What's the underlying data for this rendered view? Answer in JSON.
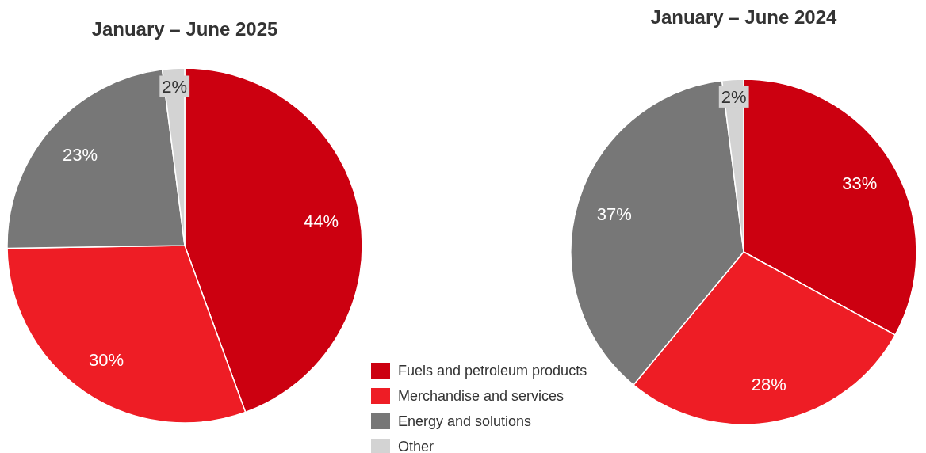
{
  "chart_data": [
    {
      "type": "pie",
      "title": "January – June 2025",
      "categories": [
        "Fuels and petroleum products",
        "Merchandise and services",
        "Energy and solutions",
        "Other"
      ],
      "values": [
        44,
        30,
        23,
        2
      ],
      "value_labels": [
        "44%",
        "30%",
        "23%",
        "2%"
      ],
      "colors": [
        "#cc0010",
        "#ee1d25",
        "#777777",
        "#d3d3d3"
      ],
      "legend": "bottom right"
    },
    {
      "type": "pie",
      "title": "January – June 2024",
      "categories": [
        null,
        null,
        null,
        null
      ],
      "values": [
        33,
        28,
        37,
        2
      ],
      "value_labels": [
        "33%",
        "28%",
        "37%",
        "2%"
      ],
      "colors": [
        "#cc0010",
        "#ee1d25",
        "#777777",
        "#d3d3d3"
      ]
    }
  ]
}
